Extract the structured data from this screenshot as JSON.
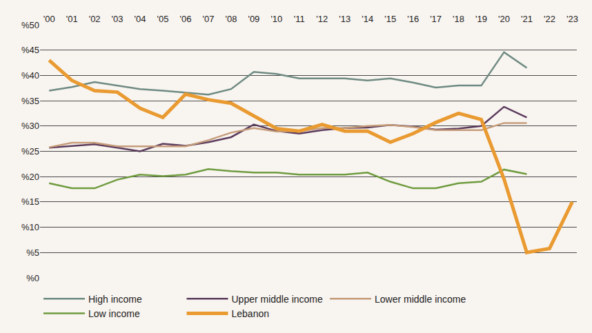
{
  "chart_data": {
    "type": "line",
    "categories": [
      "'00",
      "'01",
      "'02",
      "'03",
      "'04",
      "'05",
      "'06",
      "'07",
      "'08",
      "'09",
      "'10",
      "'11",
      "'12",
      "'13",
      "'14",
      "'15",
      "'16",
      "'17",
      "'18",
      "'19",
      "'20",
      "'21",
      "'22",
      "'23"
    ],
    "series": [
      {
        "name": "High income",
        "color": "#6d8a82",
        "values": [
          37,
          37.7,
          38.7,
          38,
          37.3,
          37,
          36.6,
          36.2,
          37.3,
          40.7,
          40.3,
          39.4,
          39.4,
          39.4,
          39,
          39.4,
          38.6,
          37.6,
          38,
          38,
          44.6,
          41.5,
          null,
          null
        ]
      },
      {
        "name": "Upper middle income",
        "color": "#5b3b5c",
        "values": [
          25.7,
          26,
          26.4,
          25.7,
          25,
          26.5,
          26.1,
          26.8,
          27.8,
          30.3,
          29,
          28.5,
          29.2,
          29.6,
          29.7,
          30.2,
          29.9,
          29.3,
          29.5,
          30,
          33.8,
          31.7,
          null,
          null
        ]
      },
      {
        "name": "Lower middle income",
        "color": "#c59c7a",
        "values": [
          25.8,
          26.7,
          26.7,
          26,
          26,
          26,
          26,
          27.2,
          28.7,
          29.6,
          28.9,
          29,
          29.6,
          29.6,
          30,
          30.2,
          29.8,
          29.2,
          29.2,
          29.2,
          30.6,
          30.6,
          null,
          null
        ]
      },
      {
        "name": "Low income",
        "color": "#6e9b3e",
        "values": [
          18.7,
          17.7,
          17.7,
          19.4,
          20.4,
          20.1,
          20.4,
          21.5,
          21.1,
          20.8,
          20.8,
          20.4,
          20.4,
          20.4,
          20.8,
          19,
          17.7,
          17.7,
          18.7,
          19,
          21.4,
          20.5,
          null,
          null
        ]
      },
      {
        "name": "Lebanon",
        "color": "#e99a30",
        "values": [
          43,
          39,
          37,
          36.7,
          33.5,
          31.7,
          36.3,
          35.2,
          34.5,
          32,
          29.5,
          29,
          30.3,
          29,
          29,
          26.8,
          28.5,
          30.7,
          32.5,
          31.3,
          19.5,
          5,
          5.8,
          15
        ]
      }
    ],
    "ylim": [
      0,
      50
    ],
    "yticks": [
      {
        "value": 0,
        "label": "%0"
      },
      {
        "value": 5,
        "label": "%5"
      },
      {
        "value": 10,
        "label": "%10"
      },
      {
        "value": 15,
        "label": "%15"
      },
      {
        "value": 20,
        "label": "%20"
      },
      {
        "value": 25,
        "label": "%25"
      },
      {
        "value": 30,
        "label": "%30"
      },
      {
        "value": 35,
        "label": "%35"
      },
      {
        "value": 40,
        "label": "%40"
      },
      {
        "value": 45,
        "label": "%45"
      },
      {
        "value": 50,
        "label": "%50"
      }
    ],
    "grid": true,
    "legend": "bottom"
  }
}
